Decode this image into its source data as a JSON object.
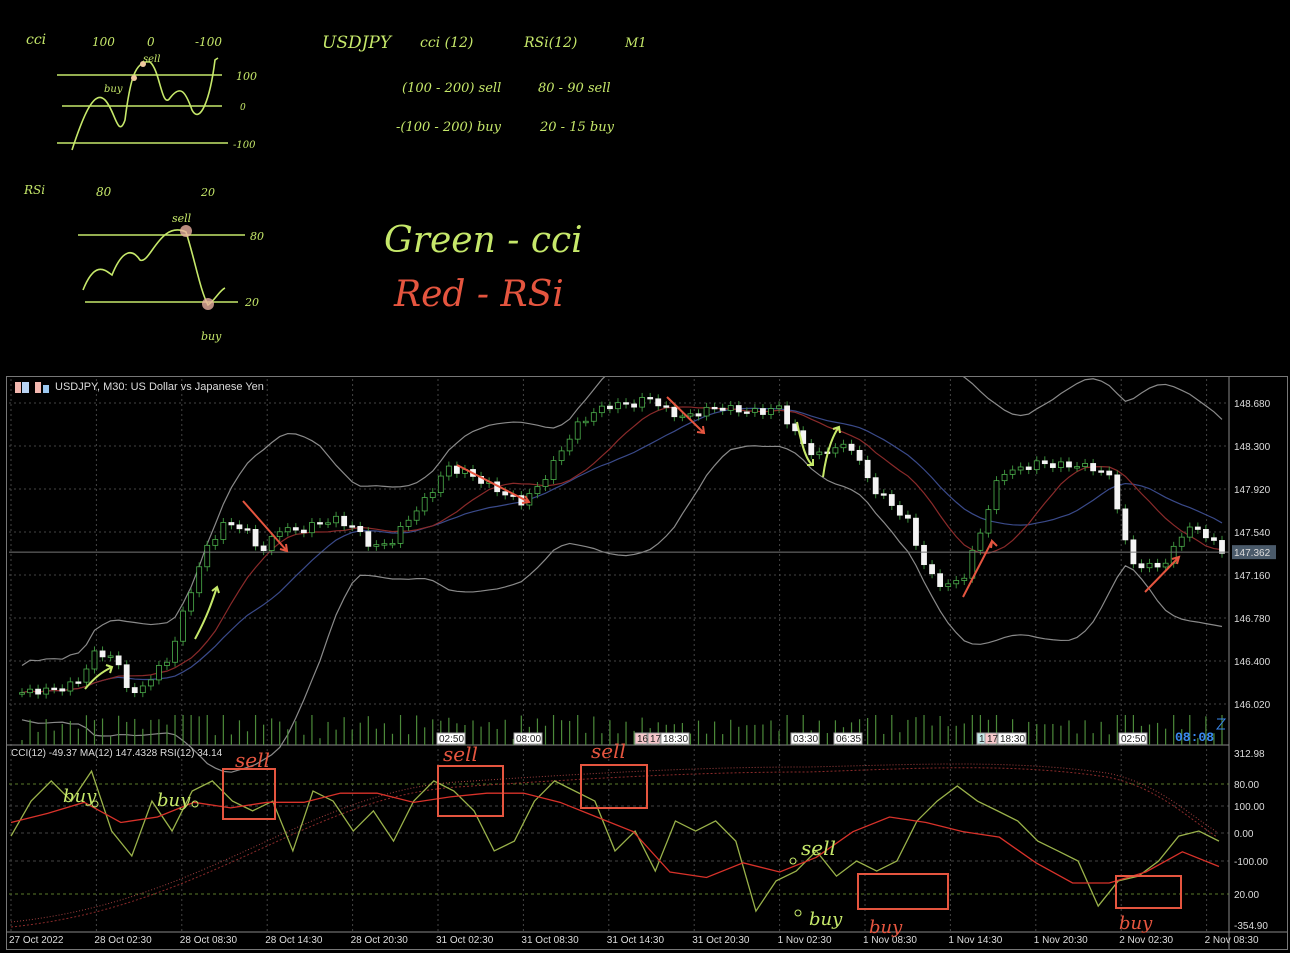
{
  "notes": {
    "cci_title": "cci",
    "cci_levels_top": [
      "100",
      "0",
      "-100"
    ],
    "cci_side_levels": [
      "100",
      "0",
      "-100"
    ],
    "cci_buy": "buy",
    "cci_sell": "sell",
    "rsi_title": "RSi",
    "rsi_levels_top": [
      "80",
      "20"
    ],
    "rsi_side_levels": [
      "80",
      "20"
    ],
    "rsi_sell": "sell",
    "rsi_buy": "buy",
    "header": [
      "USDJPY",
      "cci (12)",
      "RSi(12)",
      "M1"
    ],
    "rule_sell": [
      "(100 - 200) sell",
      "80 - 90 sell"
    ],
    "rule_buy": [
      "-(100 - 200) buy",
      "20 - 15 buy"
    ],
    "legend_green": "Green - cci",
    "legend_red": "Red - RSi",
    "green_color": "#c6e86a",
    "red_color": "#e5553f"
  },
  "chart": {
    "title": "USDJPY, M30:  US Dollar vs Japanese Yen",
    "indicator_label": "CCI(12) -49.37 MA(12) 147.4328 RSI(12) 34.14",
    "current_price": "147.362",
    "volume_markers": [
      "02:50",
      "08:00",
      "16",
      "17",
      "18:30",
      "03:30",
      "06:35",
      "11",
      "17",
      "18:30",
      "02:50"
    ],
    "timer": "08:08",
    "annotations": {
      "buy_labels": [
        "buy",
        "buy",
        "buy",
        "buy",
        "buy"
      ],
      "sell_labels": [
        "sell",
        "sell",
        "sell",
        "sell"
      ]
    }
  },
  "chart_data": {
    "type": "candlestick",
    "symbol": "USDJPY",
    "timeframe": "M30",
    "price_axis_ticks": [
      "148.680",
      "148.300",
      "147.920",
      "147.540",
      "147.160",
      "146.780",
      "146.400",
      "146.020"
    ],
    "indicator_axis_ticks": [
      "312.98",
      "80.00",
      "100.00",
      "0.00",
      "-100.00",
      "20.00",
      "-354.90"
    ],
    "time_axis_ticks": [
      "27 Oct 2022",
      "28 Oct 02:30",
      "28 Oct 08:30",
      "28 Oct 14:30",
      "28 Oct 20:30",
      "31 Oct 02:30",
      "31 Oct 08:30",
      "31 Oct 14:30",
      "31 Oct 20:30",
      "1 Nov 02:30",
      "1 Nov 08:30",
      "1 Nov 14:30",
      "1 Nov 20:30",
      "2 Nov 02:30",
      "2 Nov 08:30"
    ],
    "ylim": [
      146.0,
      148.7
    ],
    "close_approx": [
      146.12,
      146.14,
      146.15,
      146.21,
      146.48,
      146.43,
      146.08,
      146.26,
      146.43,
      146.96,
      147.4,
      147.62,
      147.58,
      147.36,
      147.58,
      147.54,
      147.62,
      147.65,
      147.58,
      147.4,
      147.45,
      147.67,
      147.85,
      148.11,
      148.07,
      147.98,
      147.89,
      147.8,
      147.94,
      148.2,
      148.47,
      148.6,
      148.67,
      148.66,
      148.73,
      148.6,
      148.55,
      148.62,
      148.64,
      148.61,
      148.6,
      148.64,
      148.38,
      148.2,
      148.29,
      148.29,
      147.94,
      147.8,
      147.63,
      147.19,
      147.05,
      147.14,
      147.58,
      148.07,
      148.09,
      148.15,
      148.13,
      148.13,
      148.11,
      148.02,
      147.27,
      147.23,
      147.27,
      147.58,
      147.54,
      147.36
    ],
    "cci_approx": [
      -11,
      114,
      186,
      114,
      221,
      7,
      -82,
      114,
      7,
      150,
      186,
      114,
      79,
      114,
      -64,
      150,
      114,
      7,
      79,
      -29,
      114,
      186,
      150,
      79,
      -64,
      -29,
      114,
      186,
      150,
      114,
      -64,
      7,
      -136,
      43,
      7,
      43,
      -29,
      -279,
      -171,
      -136,
      -64,
      -154,
      -100,
      -136,
      -100,
      43,
      114,
      168,
      114,
      79,
      43,
      -29,
      -64,
      -100,
      -261,
      -171,
      -154,
      -100,
      -11,
      7,
      -29
    ],
    "rsi_approx": [
      59,
      64,
      70,
      59,
      62,
      70,
      67,
      70,
      70,
      75,
      75,
      70,
      73,
      75,
      75,
      70,
      62,
      54,
      32,
      29,
      37,
      32,
      40,
      54,
      62,
      59,
      54,
      51,
      37,
      26,
      26,
      32,
      43,
      35
    ],
    "series": [
      {
        "name": "CCI(12)",
        "color": "#9ab24a"
      },
      {
        "name": "RSI(12)",
        "color": "#d8322a"
      }
    ]
  }
}
